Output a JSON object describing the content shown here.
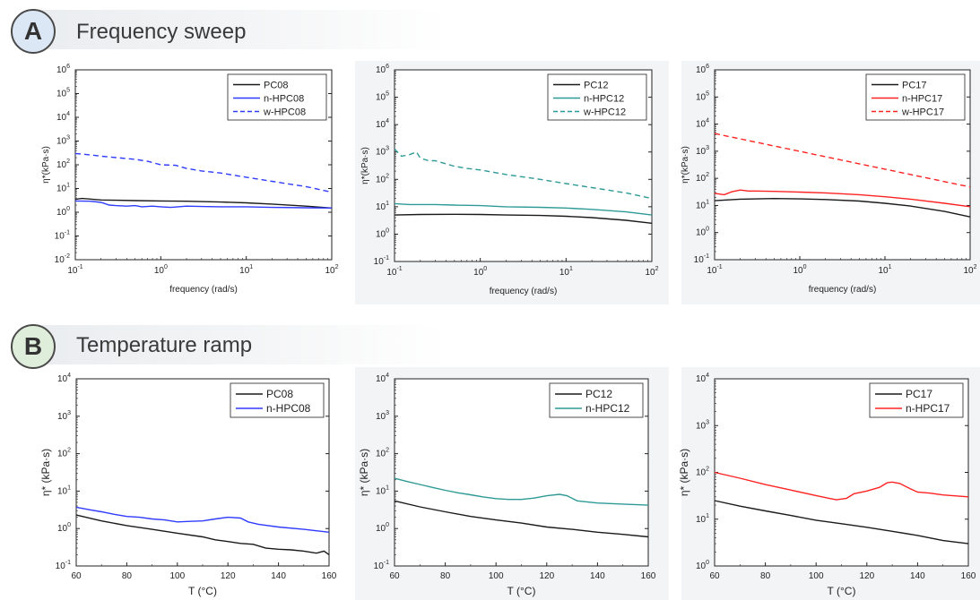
{
  "sections": {
    "a": {
      "badge": "A",
      "title": "Frequency sweep"
    },
    "b": {
      "badge": "B",
      "title": "Temperature ramp"
    }
  },
  "colors": {
    "black": "#1a1a1a",
    "blue": "#2f3bff",
    "teal": "#2e9a96",
    "red": "#ff2222"
  },
  "chart_data": [
    {
      "id": "a1",
      "type": "line",
      "xscale": "log",
      "yscale": "log",
      "xlim": [
        0.1,
        100
      ],
      "ylim": [
        0.01,
        1000000
      ],
      "xlabel": "frequency (rad/s)",
      "ylabel": "η*(kPa·s)",
      "legend_position": "top-right",
      "series": [
        {
          "name": "PC08",
          "color": "black",
          "dash": false,
          "x": [
            0.1,
            0.12,
            0.15,
            0.2,
            0.3,
            0.5,
            1,
            2,
            5,
            10,
            20,
            50,
            100
          ],
          "y": [
            3.5,
            3.8,
            3.6,
            3.3,
            3.2,
            3.1,
            3.0,
            2.9,
            2.7,
            2.5,
            2.2,
            1.8,
            1.5
          ]
        },
        {
          "name": "n-HPC08",
          "color": "blue",
          "dash": false,
          "x": [
            0.1,
            0.15,
            0.2,
            0.25,
            0.3,
            0.4,
            0.5,
            0.6,
            0.8,
            1,
            1.3,
            1.6,
            2,
            3,
            5,
            10,
            20,
            50,
            100
          ],
          "y": [
            3.0,
            2.9,
            2.6,
            2.0,
            1.9,
            1.8,
            1.9,
            1.7,
            1.8,
            1.7,
            1.6,
            1.7,
            1.8,
            1.75,
            1.7,
            1.7,
            1.6,
            1.55,
            1.5
          ]
        },
        {
          "name": "w-HPC08",
          "color": "blue",
          "dash": true,
          "x": [
            0.1,
            0.15,
            0.2,
            0.3,
            0.5,
            0.7,
            1,
            1.5,
            2,
            3,
            5,
            10,
            20,
            50,
            100
          ],
          "y": [
            300,
            260,
            230,
            200,
            170,
            140,
            100,
            95,
            70,
            55,
            45,
            30,
            20,
            12,
            7
          ]
        }
      ]
    },
    {
      "id": "a2",
      "type": "line",
      "xscale": "log",
      "yscale": "log",
      "xlim": [
        0.1,
        100
      ],
      "ylim": [
        0.1,
        1000000
      ],
      "xlabel": "frequency (rad/s)",
      "ylabel": "η*(kPa·s)",
      "legend_position": "top-right",
      "series": [
        {
          "name": "PC12",
          "color": "black",
          "dash": false,
          "x": [
            0.1,
            0.2,
            0.5,
            1,
            2,
            5,
            10,
            20,
            50,
            100
          ],
          "y": [
            5,
            5.2,
            5.3,
            5.2,
            5.0,
            4.8,
            4.5,
            4.0,
            3.2,
            2.5
          ]
        },
        {
          "name": "n-HPC12",
          "color": "teal",
          "dash": false,
          "x": [
            0.1,
            0.15,
            0.2,
            0.3,
            0.5,
            1,
            2,
            5,
            10,
            20,
            50,
            100
          ],
          "y": [
            13,
            12,
            12,
            12,
            11.5,
            11,
            10,
            9.5,
            9,
            8,
            6.5,
            5
          ]
        },
        {
          "name": "w-HPC12",
          "color": "teal",
          "dash": true,
          "x": [
            0.1,
            0.12,
            0.15,
            0.18,
            0.2,
            0.25,
            0.3,
            0.5,
            0.7,
            1,
            2,
            5,
            10,
            20,
            50,
            100
          ],
          "y": [
            1300,
            700,
            800,
            1000,
            600,
            480,
            480,
            300,
            250,
            220,
            150,
            100,
            70,
            50,
            32,
            20
          ]
        }
      ]
    },
    {
      "id": "a3",
      "type": "line",
      "xscale": "log",
      "yscale": "log",
      "xlim": [
        0.1,
        100
      ],
      "ylim": [
        0.1,
        1000000
      ],
      "xlabel": "frequency (rad/s)",
      "ylabel": "η*(kPa·s)",
      "legend_position": "top-right",
      "series": [
        {
          "name": "PC17",
          "color": "black",
          "dash": false,
          "x": [
            0.1,
            0.2,
            0.5,
            1,
            2,
            5,
            10,
            20,
            50,
            100
          ],
          "y": [
            15,
            17,
            18,
            17.5,
            16.5,
            14.5,
            12,
            9.5,
            6,
            3.8
          ]
        },
        {
          "name": "n-HPC17",
          "color": "red",
          "dash": false,
          "x": [
            0.1,
            0.13,
            0.16,
            0.2,
            0.25,
            0.3,
            0.5,
            1,
            2,
            5,
            10,
            20,
            50,
            100
          ],
          "y": [
            28,
            25,
            32,
            37,
            34,
            34,
            33,
            31,
            29,
            25,
            21,
            17,
            12,
            9
          ]
        },
        {
          "name": "w-HPC17",
          "color": "red",
          "dash": true,
          "x": [
            0.1,
            100
          ],
          "y": [
            4500,
            48
          ]
        }
      ]
    },
    {
      "id": "b1",
      "type": "line",
      "xscale": "linear",
      "yscale": "log",
      "xlim": [
        60,
        160
      ],
      "ylim": [
        0.1,
        10000
      ],
      "xlabel": "T (°C)",
      "ylabel": "η* (kPa·s)",
      "legend_position": "top-right",
      "series": [
        {
          "name": "PC08",
          "color": "black",
          "dash": false,
          "x": [
            60,
            70,
            80,
            90,
            100,
            110,
            115,
            120,
            125,
            130,
            135,
            140,
            145,
            150,
            155,
            158,
            160
          ],
          "y": [
            2.3,
            1.6,
            1.2,
            0.95,
            0.75,
            0.6,
            0.5,
            0.45,
            0.4,
            0.38,
            0.3,
            0.28,
            0.27,
            0.25,
            0.22,
            0.25,
            0.2
          ]
        },
        {
          "name": "n-HPC08",
          "color": "blue",
          "dash": false,
          "x": [
            60,
            65,
            70,
            75,
            80,
            85,
            90,
            95,
            100,
            105,
            110,
            115,
            120,
            125,
            128,
            132,
            140,
            150,
            160
          ],
          "y": [
            3.7,
            3.2,
            2.8,
            2.4,
            2.1,
            2.0,
            1.8,
            1.7,
            1.5,
            1.55,
            1.6,
            1.8,
            2.0,
            1.9,
            1.5,
            1.3,
            1.1,
            0.95,
            0.8
          ]
        }
      ]
    },
    {
      "id": "b2",
      "type": "line",
      "xscale": "linear",
      "yscale": "log",
      "xlim": [
        60,
        160
      ],
      "ylim": [
        0.1,
        10000
      ],
      "xlabel": "T (°C)",
      "ylabel": "η* (kPa·s)",
      "legend_position": "top-right",
      "series": [
        {
          "name": "PC12",
          "color": "black",
          "dash": false,
          "x": [
            60,
            70,
            80,
            90,
            100,
            110,
            120,
            130,
            140,
            150,
            160
          ],
          "y": [
            5.5,
            3.8,
            2.8,
            2.1,
            1.7,
            1.4,
            1.1,
            0.95,
            0.8,
            0.7,
            0.6
          ]
        },
        {
          "name": "n-HPC12",
          "color": "teal",
          "dash": false,
          "x": [
            60,
            65,
            70,
            75,
            80,
            85,
            90,
            95,
            100,
            105,
            110,
            115,
            120,
            125,
            128,
            132,
            140,
            150,
            160
          ],
          "y": [
            22,
            18,
            15,
            12.5,
            10.5,
            9,
            8,
            7,
            6.3,
            6,
            6,
            6.5,
            7.5,
            8.2,
            7.5,
            5.5,
            4.8,
            4.5,
            4.2
          ]
        }
      ]
    },
    {
      "id": "b3",
      "type": "line",
      "xscale": "linear",
      "yscale": "log",
      "xlim": [
        60,
        160
      ],
      "ylim": [
        1,
        10000
      ],
      "xlabel": "T (°C)",
      "ylabel": "η* (kPa·s)",
      "legend_position": "top-right",
      "series": [
        {
          "name": "PC17",
          "color": "black",
          "dash": false,
          "x": [
            60,
            70,
            80,
            90,
            100,
            110,
            120,
            130,
            140,
            150,
            160
          ],
          "y": [
            25,
            19,
            15,
            12,
            9.5,
            8,
            6.7,
            5.5,
            4.5,
            3.5,
            3
          ]
        },
        {
          "name": "n-HPC17",
          "color": "red",
          "dash": false,
          "x": [
            60,
            70,
            80,
            90,
            100,
            105,
            108,
            112,
            115,
            120,
            125,
            128,
            130,
            133,
            137,
            140,
            145,
            150,
            160
          ],
          "y": [
            100,
            75,
            55,
            42,
            32,
            28,
            26,
            28,
            35,
            40,
            48,
            60,
            62,
            58,
            45,
            38,
            36,
            33,
            30
          ]
        }
      ]
    }
  ]
}
